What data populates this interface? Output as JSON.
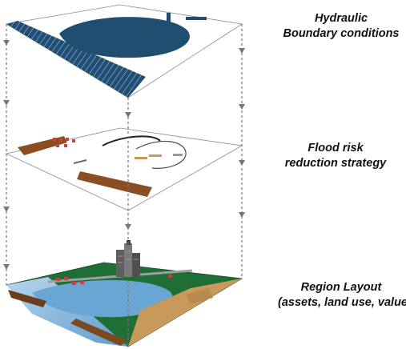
{
  "layers": [
    {
      "id": "hydraulic",
      "lines": [
        "Hydraulic",
        "Boundary conditions"
      ]
    },
    {
      "id": "flood-risk",
      "lines": [
        "Flood risk",
        "reduction strategy"
      ]
    },
    {
      "id": "region",
      "lines": [
        "Region Layout",
        "(assets, land use, values)"
      ]
    }
  ],
  "colors": {
    "water_dark": "#1f4e70",
    "water_light": "#5a9fd0",
    "land_green": "#1f6e36",
    "dike_brown": "#8a4e22",
    "sand": "#c79a5c",
    "building_gray": "#6d6d6d",
    "house_red": "#c94040",
    "guide_line": "#777777"
  },
  "icons": {
    "arrow": "arrow-down-icon",
    "house": "house-icon",
    "building": "building-icon"
  }
}
